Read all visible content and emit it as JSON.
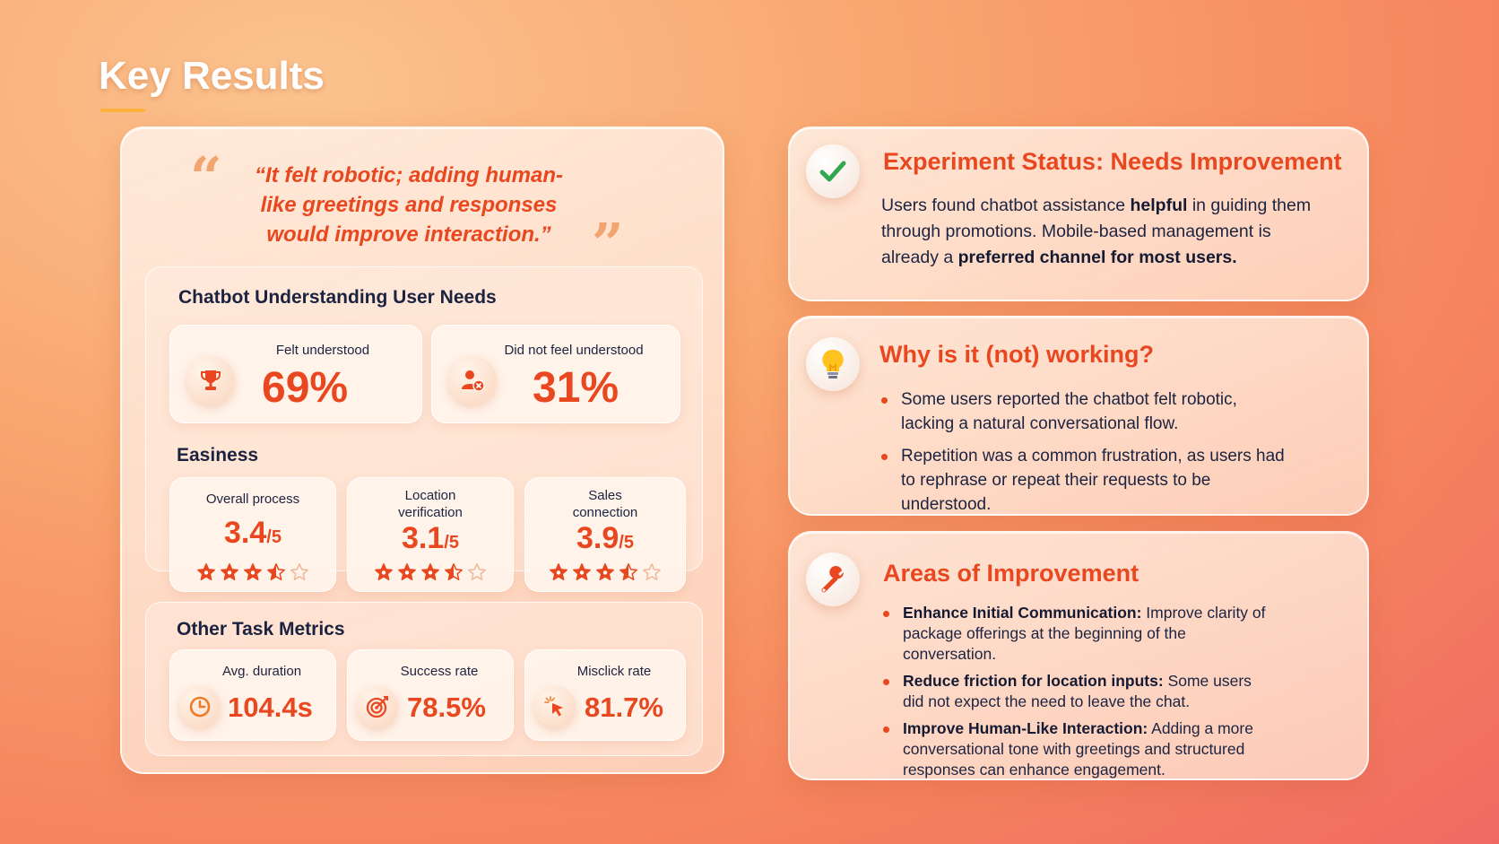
{
  "page": {
    "title": "Key Results"
  },
  "quote": {
    "text": "“It felt robotic; adding human-like greetings and responses would improve interaction.”",
    "open_mark": "“",
    "close_mark": "”"
  },
  "understanding": {
    "title": "Chatbot Understanding User Needs",
    "cards": [
      {
        "label": "Felt understood",
        "value": "69%",
        "icon": "trophy-icon"
      },
      {
        "label": "Did not feel understood",
        "value": "31%",
        "icon": "user-x-icon"
      }
    ]
  },
  "easiness": {
    "title": "Easiness",
    "cards": [
      {
        "label_line1": "Overall process",
        "label_line2": "",
        "score": "3.4",
        "max": "/5",
        "rating": 3.4
      },
      {
        "label_line1": "Location",
        "label_line2": "verification",
        "score": "3.1",
        "max": "/5",
        "rating": 3.1
      },
      {
        "label_line1": "Sales",
        "label_line2": "connection",
        "score": "3.9",
        "max": "/5",
        "rating": 3.9
      }
    ]
  },
  "other_metrics": {
    "title": "Other Task Metrics",
    "cards": [
      {
        "label": "Avg. duration",
        "value": "104.4s",
        "icon": "clock-icon"
      },
      {
        "label": "Success rate",
        "value": "78.5%",
        "icon": "target-icon"
      },
      {
        "label": "Misclick rate",
        "value": "81.7%",
        "icon": "cursor-click-icon"
      }
    ]
  },
  "status": {
    "title": "Experiment Status: Needs Improvement",
    "icon": "check-icon",
    "body_1": "Users found chatbot assistance ",
    "body_bold_1": "helpful",
    "body_2": " in guiding them through promotions. Mobile-based management is already a ",
    "body_bold_2": "preferred channel for most users."
  },
  "why": {
    "title": "Why is it (not) working?",
    "icon": "lightbulb-icon",
    "points": [
      "Some users reported the chatbot felt robotic, lacking a natural conversational flow.",
      "Repetition was a common frustration, as users had to rephrase or repeat their requests to be understood."
    ]
  },
  "areas": {
    "title": "Areas of Improvement",
    "icon": "wrench-icon",
    "points": [
      {
        "bold": "Enhance Initial Communication:",
        "text": " Improve clarity of package offerings at the beginning of the conversation."
      },
      {
        "bold": "Reduce friction for location inputs:",
        "text": " Some users did not expect the need to leave the chat."
      },
      {
        "bold": "Improve Human-Like Interaction:",
        "text": " Adding a more conversational tone with greetings and structured responses can enhance engagement."
      }
    ]
  },
  "colors": {
    "accent": "#e8471f",
    "star": "#e8471f",
    "star_empty": "#f0b79a",
    "check": "#2fa84f"
  }
}
